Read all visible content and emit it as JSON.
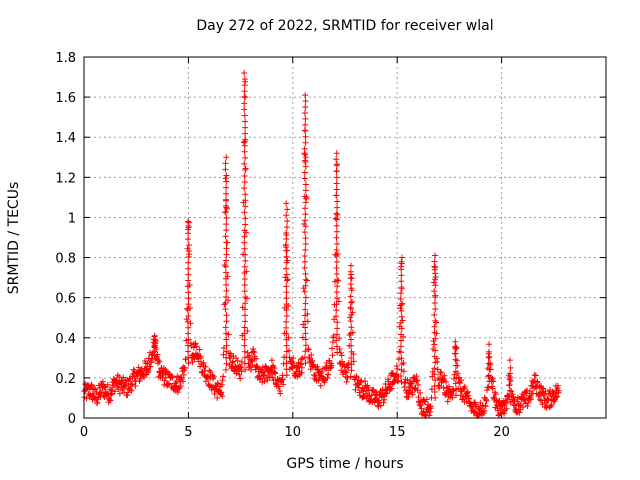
{
  "chart_data": {
    "type": "scatter",
    "title": "Day 272 of 2022, SRMTID for receiver wlal",
    "xlabel": "GPS time / hours",
    "ylabel": "SRMTID / TECUs",
    "xlim": [
      0,
      25
    ],
    "ylim": [
      0,
      1.8
    ],
    "xticks": [
      "0",
      "5",
      "10",
      "15",
      "20"
    ],
    "yticks": [
      "0",
      "0.2",
      "0.4",
      "0.6",
      "0.8",
      "1",
      "1.2",
      "1.4",
      "1.6",
      "1.8"
    ],
    "grid": true,
    "marker": "+",
    "color": "#ff0000",
    "series": [
      {
        "name": "SRMTID",
        "profile": [
          [
            0.0,
            0.12
          ],
          [
            0.3,
            0.14
          ],
          [
            0.6,
            0.1
          ],
          [
            0.9,
            0.15
          ],
          [
            1.2,
            0.12
          ],
          [
            1.5,
            0.18
          ],
          [
            1.8,
            0.16
          ],
          [
            2.1,
            0.15
          ],
          [
            2.4,
            0.2
          ],
          [
            2.7,
            0.22
          ],
          [
            3.0,
            0.25
          ],
          [
            3.3,
            0.32
          ],
          [
            3.6,
            0.24
          ],
          [
            3.9,
            0.2
          ],
          [
            4.2,
            0.18
          ],
          [
            4.5,
            0.17
          ],
          [
            4.8,
            0.22
          ],
          [
            5.1,
            0.3
          ],
          [
            5.4,
            0.35
          ],
          [
            5.7,
            0.25
          ],
          [
            6.0,
            0.2
          ],
          [
            6.3,
            0.15
          ],
          [
            6.6,
            0.12
          ],
          [
            6.9,
            0.3
          ],
          [
            7.2,
            0.28
          ],
          [
            7.5,
            0.22
          ],
          [
            7.8,
            0.25
          ],
          [
            8.1,
            0.3
          ],
          [
            8.4,
            0.2
          ],
          [
            8.7,
            0.22
          ],
          [
            9.0,
            0.25
          ],
          [
            9.3,
            0.15
          ],
          [
            9.6,
            0.18
          ],
          [
            9.9,
            0.28
          ],
          [
            10.2,
            0.24
          ],
          [
            10.5,
            0.26
          ],
          [
            10.8,
            0.3
          ],
          [
            11.1,
            0.22
          ],
          [
            11.4,
            0.2
          ],
          [
            11.7,
            0.25
          ],
          [
            12.0,
            0.35
          ],
          [
            12.3,
            0.28
          ],
          [
            12.6,
            0.22
          ],
          [
            12.9,
            0.2
          ],
          [
            13.2,
            0.15
          ],
          [
            13.5,
            0.14
          ],
          [
            13.8,
            0.1
          ],
          [
            14.1,
            0.09
          ],
          [
            14.4,
            0.12
          ],
          [
            14.7,
            0.18
          ],
          [
            15.0,
            0.22
          ],
          [
            15.3,
            0.16
          ],
          [
            15.6,
            0.14
          ],
          [
            15.9,
            0.18
          ],
          [
            16.2,
            0.06
          ],
          [
            16.5,
            0.05
          ],
          [
            16.8,
            0.1
          ],
          [
            17.1,
            0.22
          ],
          [
            17.4,
            0.12
          ],
          [
            17.7,
            0.09
          ],
          [
            18.0,
            0.16
          ],
          [
            18.3,
            0.1
          ],
          [
            18.6,
            0.05
          ],
          [
            18.9,
            0.03
          ],
          [
            19.2,
            0.06
          ],
          [
            19.5,
            0.2
          ],
          [
            19.8,
            0.04
          ],
          [
            20.1,
            0.05
          ],
          [
            20.4,
            0.08
          ],
          [
            20.7,
            0.06
          ],
          [
            21.0,
            0.08
          ],
          [
            21.3,
            0.1
          ],
          [
            21.6,
            0.18
          ],
          [
            21.9,
            0.12
          ],
          [
            22.2,
            0.08
          ],
          [
            22.5,
            0.12
          ],
          [
            22.7,
            0.13
          ]
        ],
        "peaks": [
          {
            "x": 5.0,
            "y": 0.98
          },
          {
            "x": 6.8,
            "y": 1.3
          },
          {
            "x": 7.7,
            "y": 1.72
          },
          {
            "x": 9.7,
            "y": 1.07
          },
          {
            "x": 10.6,
            "y": 1.61
          },
          {
            "x": 12.1,
            "y": 1.32
          },
          {
            "x": 12.8,
            "y": 0.76
          },
          {
            "x": 15.2,
            "y": 0.8
          },
          {
            "x": 16.8,
            "y": 0.81
          },
          {
            "x": 17.8,
            "y": 0.38
          },
          {
            "x": 19.4,
            "y": 0.33
          },
          {
            "x": 20.4,
            "y": 0.25
          },
          {
            "x": 3.4,
            "y": 0.41
          }
        ]
      }
    ]
  }
}
